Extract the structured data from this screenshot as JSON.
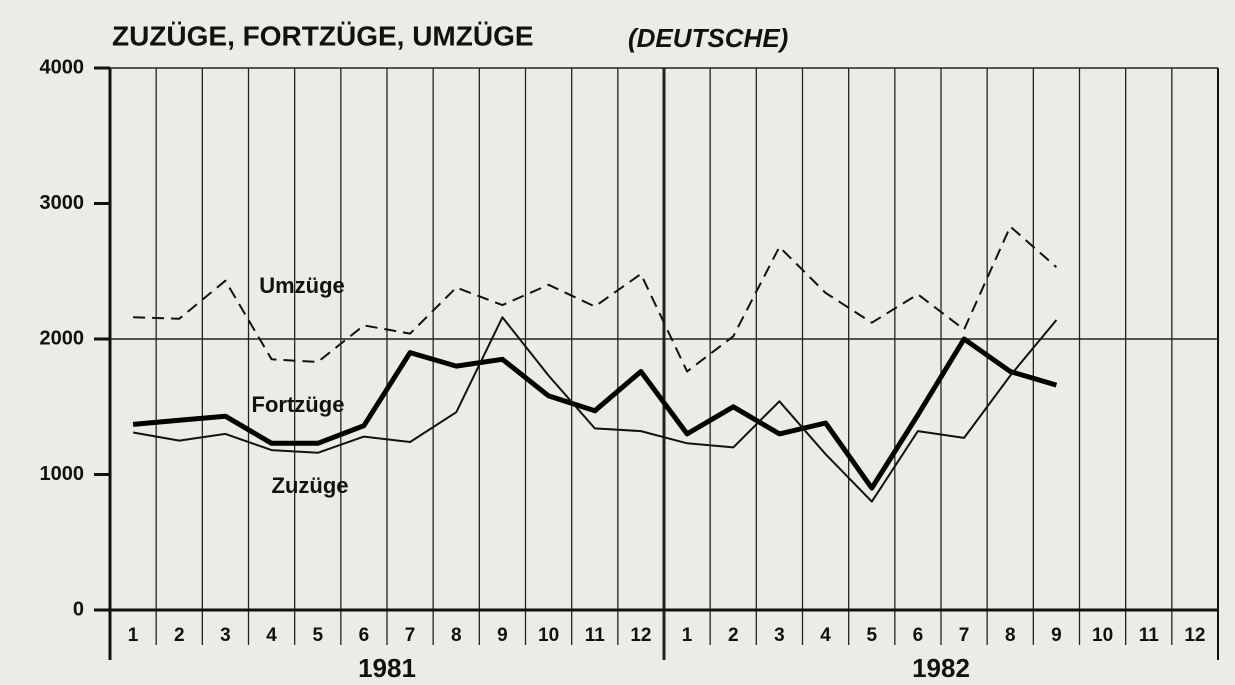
{
  "chart_data": {
    "type": "line",
    "title": "ZUZÜGE, FORTZÜGE, UMZÜGE",
    "subtitle": "(DEUTSCHE)",
    "categories": [
      "1",
      "2",
      "3",
      "4",
      "5",
      "6",
      "7",
      "8",
      "9",
      "10",
      "11",
      "12",
      "1",
      "2",
      "3",
      "4",
      "5",
      "6",
      "7",
      "8",
      "9",
      "10",
      "11",
      "12"
    ],
    "years": [
      "1981",
      "1982"
    ],
    "ylim": [
      0,
      4000
    ],
    "yticks": [
      0,
      1000,
      2000,
      3000,
      4000
    ],
    "grid_values": [
      2000,
      4000
    ],
    "series": [
      {
        "name": "Umzüge",
        "color": "#111111",
        "line_style": "dashed",
        "values": [
          2160,
          2150,
          2430,
          1850,
          1830,
          2100,
          2040,
          2380,
          2250,
          2400,
          2240,
          2480,
          1760,
          2020,
          2680,
          2340,
          2120,
          2330,
          2070,
          2830,
          2530,
          null,
          null,
          null
        ]
      },
      {
        "name": "Fortzüge",
        "color": "#000000",
        "line_style": "bold",
        "values": [
          1370,
          1400,
          1430,
          1230,
          1230,
          1360,
          1900,
          1800,
          1850,
          1580,
          1470,
          1760,
          1300,
          1500,
          1300,
          1380,
          900,
          1440,
          2000,
          1760,
          1660,
          null,
          null,
          null
        ]
      },
      {
        "name": "Zuzüge",
        "color": "#111111",
        "line_style": "thin",
        "values": [
          1310,
          1250,
          1300,
          1180,
          1160,
          1280,
          1240,
          1460,
          2160,
          1730,
          1340,
          1320,
          1230,
          1200,
          1540,
          1150,
          800,
          1320,
          1270,
          1730,
          2140,
          null,
          null,
          null
        ]
      }
    ]
  }
}
